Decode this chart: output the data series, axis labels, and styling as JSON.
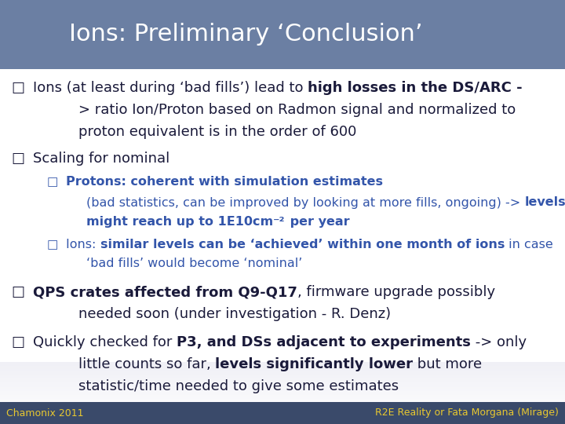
{
  "title": "Ions: Preliminary ‘Conclusion’",
  "title_bg_color": "#6b7fa3",
  "title_text_color": "#ffffff",
  "body_bg_top": "#e8e8f0",
  "body_bg_bottom": "#d0d0e0",
  "footer_bg_color": "#3a4a6a",
  "footer_left": "Chamonix 2011",
  "footer_right": "R2E Reality or Fata Morgana (Mirage)",
  "footer_text_color": "#e8c830",
  "dark": "#1a1a3a",
  "blue": "#3355aa"
}
